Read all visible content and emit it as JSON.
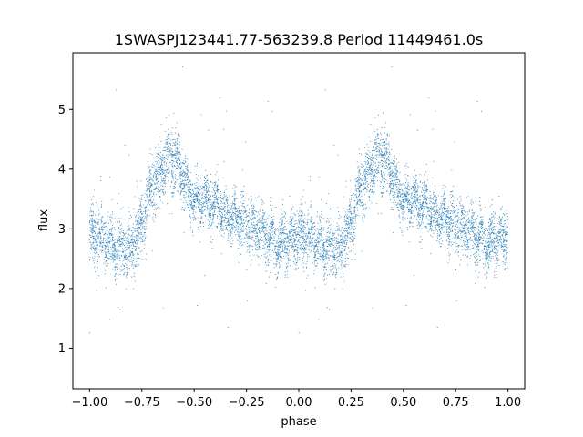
{
  "chart_data": {
    "type": "scatter",
    "title": "1SWASPJ123441.77-563239.8 Period 11449461.0s",
    "xlabel": "phase",
    "ylabel": "flux",
    "xlim": [
      -1.08,
      1.08
    ],
    "ylim": [
      0.32,
      5.95
    ],
    "xticks": [
      -1.0,
      -0.75,
      -0.5,
      -0.25,
      0.0,
      0.25,
      0.5,
      0.75,
      1.0
    ],
    "xtick_labels": [
      "−1.00",
      "−0.75",
      "−0.50",
      "−0.25",
      "0.00",
      "0.25",
      "0.50",
      "0.75",
      "1.00"
    ],
    "yticks": [
      1,
      2,
      3,
      4,
      5
    ],
    "ytick_labels": [
      "1",
      "2",
      "3",
      "4",
      "5"
    ],
    "grid": false,
    "marker_color": "#1f77b4",
    "series": [
      {
        "description_note": "",
        "envelope_phase": [
          0.0,
          0.05,
          0.1,
          0.15,
          0.2,
          0.25,
          0.3,
          0.35,
          0.38,
          0.42,
          0.45,
          0.5,
          0.55,
          0.6,
          0.65,
          0.7,
          0.75,
          0.8,
          0.85,
          0.9,
          0.95,
          1.0
        ],
        "envelope_median_flux": [
          2.95,
          2.8,
          2.75,
          2.65,
          2.7,
          3.1,
          3.7,
          4.05,
          4.25,
          4.1,
          3.8,
          3.5,
          3.45,
          3.4,
          3.25,
          3.15,
          3.1,
          3.0,
          2.85,
          2.75,
          2.75,
          2.9
        ],
        "envelope_spread": [
          0.45,
          0.4,
          0.4,
          0.45,
          0.45,
          0.45,
          0.45,
          0.45,
          0.5,
          0.45,
          0.4,
          0.35,
          0.4,
          0.35,
          0.35,
          0.35,
          0.4,
          0.45,
          0.45,
          0.4,
          0.4,
          0.45
        ]
      }
    ]
  }
}
